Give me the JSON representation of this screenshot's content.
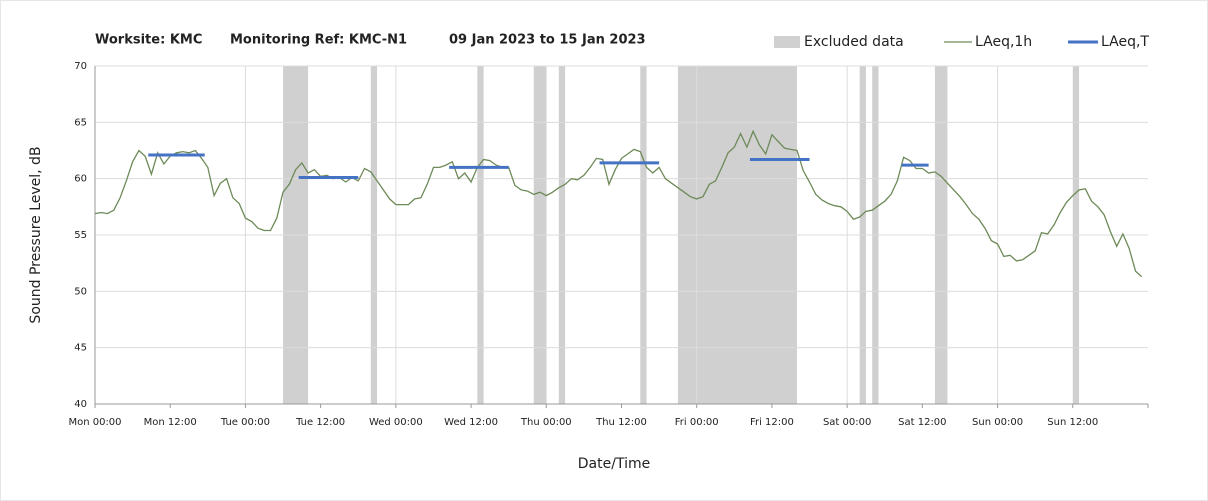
{
  "chart_data": {
    "type": "line",
    "title": "Worksite: KMC",
    "reference": "Monitoring Ref: KMC-N1",
    "period": "09 Jan 2023 to 15 Jan 2023",
    "x_label": "Date/Time",
    "y_label": "Sound Pressure Level, dB",
    "xlim": [
      0,
      168
    ],
    "ylim": [
      40,
      70
    ],
    "yticks": [
      40,
      45,
      50,
      55,
      60,
      65,
      70
    ],
    "xticks": [
      {
        "value": 0,
        "label": "Mon 00:00"
      },
      {
        "value": 12,
        "label": "Mon 12:00"
      },
      {
        "value": 24,
        "label": "Tue 00:00"
      },
      {
        "value": 36,
        "label": "Tue 12:00"
      },
      {
        "value": 48,
        "label": "Wed 00:00"
      },
      {
        "value": 60,
        "label": "Wed 12:00"
      },
      {
        "value": 72,
        "label": "Thu 00:00"
      },
      {
        "value": 84,
        "label": "Thu 12:00"
      },
      {
        "value": 96,
        "label": "Fri 00:00"
      },
      {
        "value": 108,
        "label": "Fri 12:00"
      },
      {
        "value": 120,
        "label": "Sat 00:00"
      },
      {
        "value": 132,
        "label": "Sat 12:00"
      },
      {
        "value": 144,
        "label": "Sun 00:00"
      },
      {
        "value": 156,
        "label": "Sun 12:00"
      }
    ],
    "grid": true,
    "legend": "top-right",
    "excluded": {
      "name": "Excluded data",
      "color": "#d0d0d0",
      "ranges": [
        [
          30,
          34
        ],
        [
          44,
          45
        ],
        [
          61,
          62
        ],
        [
          70,
          72
        ],
        [
          74,
          75
        ],
        [
          87,
          88
        ],
        [
          93,
          112
        ],
        [
          122,
          123
        ],
        [
          124,
          125
        ],
        [
          134,
          136
        ],
        [
          156,
          157
        ]
      ]
    },
    "x": [
      0,
      1,
      2,
      3,
      4,
      5,
      6,
      7,
      8,
      9,
      10,
      11,
      12,
      13,
      14,
      15,
      16,
      17,
      18,
      19,
      20,
      21,
      22,
      23,
      24,
      25,
      26,
      27,
      28,
      29,
      30,
      31,
      32,
      33,
      34,
      35,
      36,
      37,
      38,
      39,
      40,
      41,
      42,
      43,
      44,
      45,
      46,
      47,
      48,
      49,
      50,
      51,
      52,
      53,
      54,
      55,
      56,
      57,
      58,
      59,
      60,
      61,
      62,
      63,
      64,
      65,
      66,
      67,
      68,
      69,
      70,
      71,
      72,
      73,
      74,
      75,
      76,
      77,
      78,
      79,
      80,
      81,
      82,
      83,
      84,
      85,
      86,
      87,
      88,
      89,
      90,
      91,
      92,
      93,
      94,
      95,
      96,
      97,
      98,
      99,
      100,
      101,
      102,
      103,
      104,
      105,
      106,
      107,
      108,
      109,
      110,
      111,
      112,
      113,
      114,
      115,
      116,
      117,
      118,
      119,
      120,
      121,
      122,
      123,
      124,
      125,
      126,
      127,
      128,
      129,
      130,
      131,
      132,
      133,
      134,
      135,
      136,
      137,
      138,
      139,
      140,
      141,
      142,
      143,
      144,
      145,
      146,
      147,
      148,
      149,
      150,
      151,
      152,
      153,
      154,
      155,
      156,
      157,
      158,
      159,
      160,
      161,
      162,
      163,
      164,
      165,
      166,
      167
    ],
    "series": [
      {
        "name": "LAeq,1h",
        "color": "#6e8a58",
        "values": [
          56.9,
          57.0,
          56.9,
          57.2,
          58.3,
          59.8,
          61.5,
          62.5,
          62.0,
          60.4,
          62.3,
          61.3,
          62.0,
          62.3,
          62.4,
          62.3,
          62.5,
          61.8,
          61.0,
          58.5,
          59.6,
          60.0,
          58.3,
          57.8,
          56.5,
          56.2,
          55.6,
          55.4,
          55.4,
          56.5,
          58.8,
          59.5,
          60.8,
          61.4,
          60.5,
          60.8,
          60.2,
          60.3,
          60.0,
          60.1,
          59.7,
          60.1,
          59.8,
          60.9,
          60.6,
          59.8,
          59.0,
          58.2,
          57.7,
          57.7,
          57.7,
          58.2,
          58.3,
          59.5,
          61.0,
          61.0,
          61.2,
          61.5,
          60.0,
          60.5,
          59.7,
          61.0,
          61.7,
          61.6,
          61.2,
          61.0,
          61.0,
          59.4,
          59.0,
          58.9,
          58.6,
          58.8,
          58.5,
          58.8,
          59.2,
          59.5,
          60.0,
          59.9,
          60.3,
          61.0,
          61.8,
          61.7,
          59.5,
          60.8,
          61.8,
          62.2,
          62.6,
          62.4,
          61.0,
          60.5,
          61.0,
          60.0,
          59.6,
          59.2,
          58.8,
          58.4,
          58.2,
          58.4,
          59.5,
          59.8,
          61.0,
          62.3,
          62.8,
          64.0,
          62.8,
          64.2,
          63.0,
          62.2,
          63.9,
          63.3,
          62.7,
          62.6,
          62.5,
          60.7,
          59.7,
          58.6,
          58.1,
          57.8,
          57.6,
          57.5,
          57.1,
          56.4,
          56.6,
          57.1,
          57.2,
          57.6,
          58.0,
          58.6,
          59.8,
          61.9,
          61.6,
          60.9,
          60.9,
          60.5,
          60.6,
          60.2,
          59.6,
          59.0,
          58.4,
          57.7,
          56.9,
          56.4,
          55.6,
          54.5,
          54.2,
          53.1,
          53.2,
          52.7,
          52.8,
          53.2,
          53.6,
          55.2,
          55.1,
          55.9,
          57.0,
          57.9,
          58.5,
          59.0,
          59.1,
          58.0,
          57.5,
          56.8,
          55.3,
          54.0,
          55.1,
          53.8,
          51.8,
          51.3
        ]
      }
    ],
    "period_levels": {
      "name": "LAeq,T",
      "color": "#4472c4",
      "segments": [
        {
          "start": 8.5,
          "end": 17.5,
          "value": 62.1
        },
        {
          "start": 32.5,
          "end": 42,
          "value": 60.1
        },
        {
          "start": 56.5,
          "end": 66,
          "value": 61.0
        },
        {
          "start": 80.5,
          "end": 90,
          "value": 61.4
        },
        {
          "start": 104.5,
          "end": 114,
          "value": 61.7
        },
        {
          "start": 128.7,
          "end": 133,
          "value": 61.2
        }
      ]
    }
  }
}
